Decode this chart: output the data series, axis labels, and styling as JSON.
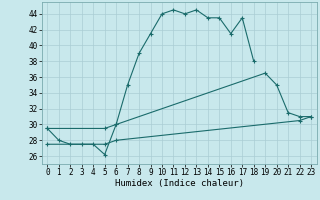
{
  "xlabel": "Humidex (Indice chaleur)",
  "bg_color": "#c8e8ec",
  "line_color": "#1a6b6b",
  "grid_color": "#aacdd4",
  "xlim": [
    -0.5,
    23.5
  ],
  "ylim": [
    25.0,
    45.5
  ],
  "xticks": [
    0,
    1,
    2,
    3,
    4,
    5,
    6,
    7,
    8,
    9,
    10,
    11,
    12,
    13,
    14,
    15,
    16,
    17,
    18,
    19,
    20,
    21,
    22,
    23
  ],
  "yticks": [
    26,
    28,
    30,
    32,
    34,
    36,
    38,
    40,
    42,
    44
  ],
  "line1_x": [
    0,
    1,
    2,
    3,
    4,
    5,
    6,
    7,
    8,
    9,
    10,
    11,
    12,
    13,
    14,
    15,
    16,
    17,
    18
  ],
  "line1_y": [
    29.5,
    28,
    27.5,
    27.5,
    27.5,
    26.2,
    30,
    35,
    39,
    41.5,
    44,
    44.5,
    44,
    44.5,
    43.5,
    43.5,
    41.5,
    43.5,
    38
  ],
  "line2_x": [
    0,
    5,
    6,
    19,
    20,
    21,
    22,
    23
  ],
  "line2_y": [
    29.5,
    29.5,
    30,
    36.5,
    35,
    31.5,
    31,
    31
  ],
  "line3_x": [
    0,
    5,
    6,
    22,
    23
  ],
  "line3_y": [
    27.5,
    27.5,
    28,
    30.5,
    31
  ]
}
